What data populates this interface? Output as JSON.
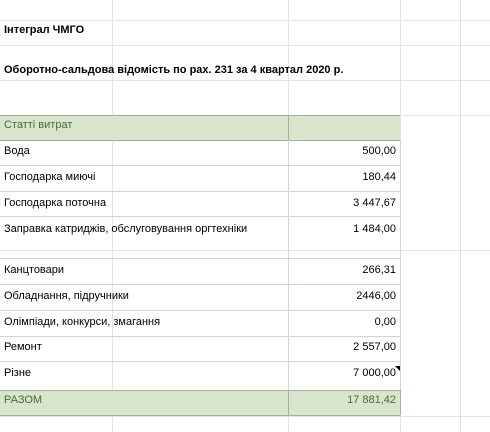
{
  "header": {
    "org": "Інтеграл ЧМГО",
    "title": "Оборотно-сальдова відомість по рах. 231 за 4 квартал 2020 р."
  },
  "table": {
    "header_label": "Статті витрат",
    "rows": [
      {
        "label": "Вода",
        "value": "500,00"
      },
      {
        "label": "Господарка миючі",
        "value": "180,44"
      },
      {
        "label": "Господарка поточна",
        "value": "3 447,67"
      },
      {
        "label": "Заправка катриджів, обслуговування оргтехніки",
        "value": "1 484,00"
      },
      {
        "label": "Канцтовари",
        "value": "266,31"
      },
      {
        "label": "Обладнання, підручники",
        "value": "2446,00"
      },
      {
        "label": "Олімпіади, конкурси, змагання",
        "value": "0,00"
      },
      {
        "label": "Ремонт",
        "value": "2 557,00"
      },
      {
        "label": "Різне",
        "value": "7 000,00"
      }
    ],
    "total": {
      "label": "РАЗОМ",
      "value": "17 881,42"
    }
  },
  "colors": {
    "header_band": "#d8e4cc",
    "total_text": "#3f6e3b"
  }
}
